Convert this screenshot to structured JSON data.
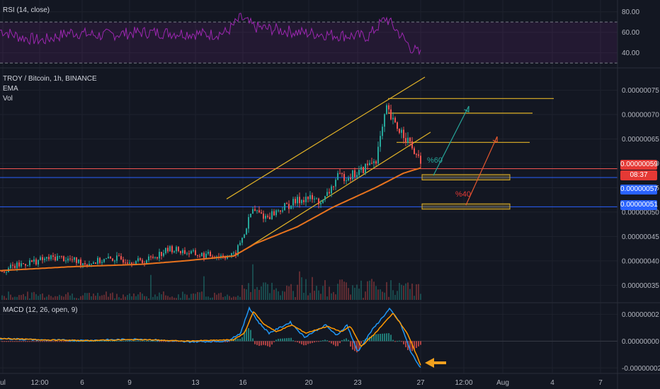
{
  "panes": {
    "rsi": {
      "label": "RSI (14, close)",
      "ticks": [
        "80.00",
        "60.00",
        "40.00"
      ]
    },
    "price": {
      "labels": [
        "TROY / Bitcoin, 1h, BINANCE",
        "EMA",
        "Vol"
      ],
      "ticks": [
        "0.00000075",
        "0.00000070",
        "0.00000065",
        "0.00000060",
        "0.00000055",
        "0.00000050",
        "0.00000045",
        "0.00000040",
        "0.00000035"
      ],
      "tags": [
        {
          "value": "0.00000059",
          "color": "#e53935"
        },
        {
          "value": "08:37",
          "color": "#e53935"
        },
        {
          "value": "0.00000057",
          "color": "#2962ff"
        },
        {
          "value": "0.00000051",
          "color": "#2962ff"
        }
      ],
      "annotations": {
        "up_scenario": "%60",
        "down_scenario": "%40"
      }
    },
    "macd": {
      "label": "MACD (12, 26, open, 9)",
      "ticks": [
        "0.00000002",
        "0.00000000",
        "-0.00000002"
      ]
    }
  },
  "time_axis": [
    "ul",
    "12:00",
    "6",
    "9",
    "13",
    "16",
    "20",
    "23",
    "27",
    "12:00",
    "Aug",
    "4",
    "7"
  ],
  "colors": {
    "background": "#131722",
    "up": "#26a69a",
    "down": "#ef5350",
    "ema": "#e8731e",
    "trend": "#e0b127",
    "rsi": "#9c27b0",
    "macd": "#2196f3",
    "signal": "#ff9800",
    "hline": "#2962ff"
  },
  "chart_data": [
    {
      "type": "line",
      "name": "RSI",
      "ylim": [
        28,
        86
      ],
      "guides": [
        70,
        30
      ],
      "keypoints": [
        [
          0,
          62
        ],
        [
          30,
          55
        ],
        [
          60,
          52
        ],
        [
          100,
          60
        ],
        [
          140,
          57
        ],
        [
          200,
          60
        ],
        [
          260,
          59
        ],
        [
          300,
          58
        ],
        [
          320,
          60
        ],
        [
          340,
          74
        ],
        [
          360,
          65
        ],
        [
          420,
          60
        ],
        [
          480,
          57
        ],
        [
          520,
          56
        ],
        [
          545,
          74
        ],
        [
          565,
          58
        ],
        [
          580,
          45
        ],
        [
          595,
          38
        ]
      ]
    },
    {
      "type": "candlestick",
      "name": "TROY / Bitcoin",
      "timeframe": "1h",
      "ylim": [
        3.2e-07,
        7.9e-07
      ],
      "keypoints": [
        [
          0,
          3.8e-07
        ],
        [
          40,
          3.97e-07
        ],
        [
          80,
          4.08e-07
        ],
        [
          120,
          3.95e-07
        ],
        [
          160,
          4.05e-07
        ],
        [
          200,
          3.98e-07
        ],
        [
          240,
          4.25e-07
        ],
        [
          280,
          4.12e-07
        ],
        [
          330,
          4.1e-07
        ],
        [
          345,
          4.6e-07
        ],
        [
          355,
          5.05e-07
        ],
        [
          375,
          4.9e-07
        ],
        [
          400,
          5.1e-07
        ],
        [
          430,
          5.3e-07
        ],
        [
          455,
          5.2e-07
        ],
        [
          475,
          5.7e-07
        ],
        [
          505,
          5.8e-07
        ],
        [
          530,
          6.1e-07
        ],
        [
          545,
          7.1e-07
        ],
        [
          555,
          6.8e-07
        ],
        [
          570,
          6.6e-07
        ],
        [
          585,
          6.2e-07
        ],
        [
          595,
          5.9e-07
        ]
      ],
      "ema_keypoints": [
        [
          0,
          3.8e-07
        ],
        [
          100,
          3.88e-07
        ],
        [
          200,
          3.93e-07
        ],
        [
          260,
          4e-07
        ],
        [
          330,
          4.1e-07
        ],
        [
          360,
          4.35e-07
        ],
        [
          420,
          4.7e-07
        ],
        [
          470,
          5.1e-07
        ],
        [
          530,
          5.5e-07
        ],
        [
          570,
          5.8e-07
        ],
        [
          595,
          5.91e-07
        ]
      ],
      "horizontal_levels": [
        5.89e-07,
        5.71e-07,
        5.11e-07
      ],
      "resistance_levels": [
        7.33e-07,
        7.03e-07,
        6.43e-07
      ],
      "channel": {
        "upper": [
          [
            320,
            5.27e-07
          ],
          [
            600,
            7.77e-07
          ]
        ],
        "lower": [
          [
            340,
            4.18e-07
          ],
          [
            608,
            6.64e-07
          ]
        ]
      },
      "zones": [
        [
          5.66e-07,
          5.77e-07
        ],
        [
          5.06e-07,
          5.17e-07
        ]
      ]
    },
    {
      "type": "line",
      "name": "MACD",
      "ylim": [
        -2.3e-08,
        2.65e-08
      ],
      "series": [
        {
          "keypoints": [
            [
              0,
              2e-09
            ],
            [
              60,
              8e-10
            ],
            [
              120,
              5e-10
            ],
            [
              200,
              1.5e-09
            ],
            [
              260,
              -5e-10
            ],
            [
              320,
              0
            ],
            [
              340,
              6e-09
            ],
            [
              352,
              2.5e-08
            ],
            [
              365,
              1.4e-08
            ],
            [
              380,
              6e-09
            ],
            [
              410,
              1.4e-08
            ],
            [
              430,
              3e-09
            ],
            [
              460,
              1.2e-08
            ],
            [
              475,
              4e-09
            ],
            [
              490,
              1.2e-08
            ],
            [
              505,
              -8e-09
            ],
            [
              525,
              8e-09
            ],
            [
              550,
              2.4e-08
            ],
            [
              565,
              1.4e-08
            ],
            [
              580,
              -8e-09
            ],
            [
              595,
              -2.1e-08
            ]
          ]
        },
        {
          "keypoints": [
            [
              0,
              2e-09
            ],
            [
              60,
              1e-09
            ],
            [
              120,
              4e-10
            ],
            [
              200,
              1.2e-09
            ],
            [
              260,
              0
            ],
            [
              330,
              1e-09
            ],
            [
              345,
              6e-09
            ],
            [
              358,
              2.2e-08
            ],
            [
              372,
              1.3e-08
            ],
            [
              390,
              7e-09
            ],
            [
              412,
              1.2e-08
            ],
            [
              432,
              6e-09
            ],
            [
              462,
              1.1e-08
            ],
            [
              482,
              7e-09
            ],
            [
              495,
              1.1e-08
            ],
            [
              510,
              -4e-09
            ],
            [
              530,
              6e-09
            ],
            [
              555,
              2.1e-08
            ],
            [
              575,
              6e-09
            ],
            [
              595,
              -1.9e-08
            ]
          ]
        }
      ]
    }
  ]
}
